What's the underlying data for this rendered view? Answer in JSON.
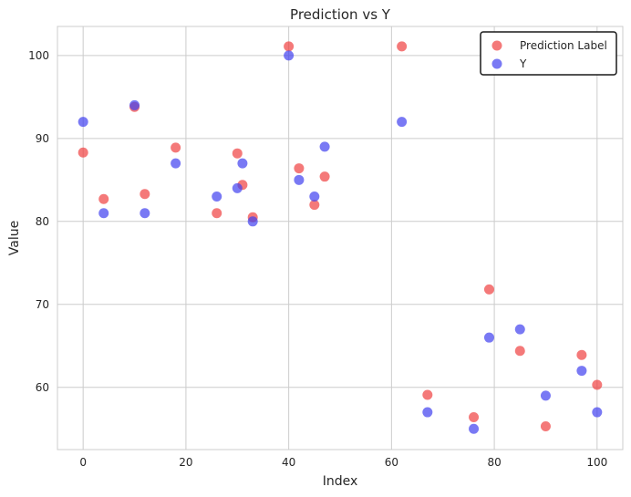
{
  "chart_data": {
    "type": "scatter",
    "title": "Prediction vs Y",
    "xlabel": "Index",
    "ylabel": "Value",
    "xlim": [
      -5,
      105
    ],
    "ylim": [
      52.5,
      103.5
    ],
    "xticks": [
      0,
      20,
      40,
      60,
      80,
      100
    ],
    "yticks": [
      60,
      70,
      80,
      90,
      100
    ],
    "grid": true,
    "legend_position": "top-right",
    "series": [
      {
        "name": "Prediction Label",
        "color": "#f04040",
        "points": [
          [
            0,
            88.3
          ],
          [
            4,
            82.7
          ],
          [
            10,
            93.8
          ],
          [
            12,
            83.3
          ],
          [
            18,
            88.9
          ],
          [
            26,
            81.0
          ],
          [
            30,
            88.2
          ],
          [
            31,
            84.4
          ],
          [
            33,
            80.5
          ],
          [
            40,
            101.1
          ],
          [
            42,
            86.4
          ],
          [
            45,
            82.0
          ],
          [
            47,
            85.4
          ],
          [
            62,
            101.1
          ],
          [
            67,
            59.1
          ],
          [
            76,
            56.4
          ],
          [
            79,
            71.8
          ],
          [
            85,
            64.4
          ],
          [
            90,
            55.3
          ],
          [
            97,
            63.9
          ],
          [
            100,
            60.3
          ]
        ]
      },
      {
        "name": "Y",
        "color": "#4040f0",
        "points": [
          [
            0,
            92
          ],
          [
            4,
            81
          ],
          [
            10,
            94
          ],
          [
            12,
            81
          ],
          [
            18,
            87
          ],
          [
            26,
            83
          ],
          [
            30,
            84
          ],
          [
            31,
            87
          ],
          [
            33,
            80
          ],
          [
            40,
            100
          ],
          [
            42,
            85
          ],
          [
            45,
            83
          ],
          [
            47,
            89
          ],
          [
            62,
            92
          ],
          [
            67,
            57
          ],
          [
            76,
            55
          ],
          [
            79,
            66
          ],
          [
            85,
            67
          ],
          [
            90,
            59
          ],
          [
            97,
            62
          ],
          [
            100,
            57
          ]
        ]
      }
    ]
  }
}
